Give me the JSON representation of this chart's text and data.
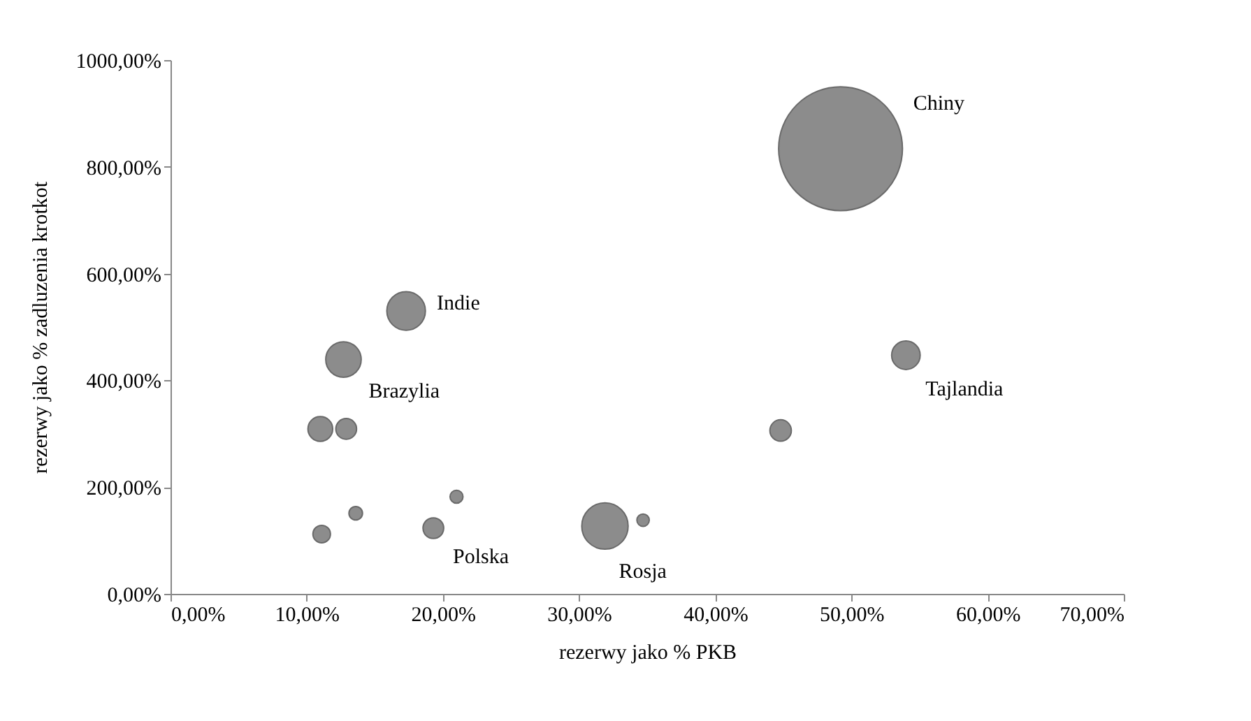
{
  "chart_data": {
    "type": "bubble",
    "xlabel": "rezerwy jako % PKB",
    "ylabel": "rezerwy jako % zadluzenia krotkot",
    "x": [
      49.2,
      17.3,
      12.7,
      11.0,
      12.9,
      11.1,
      13.6,
      21.0,
      19.3,
      31.9,
      34.7,
      44.8,
      54.0
    ],
    "series": [
      {
        "color": "#8c8c8c",
        "values": [
          834,
          530,
          439,
          309,
          309,
          112,
          151,
          182,
          123,
          127,
          138,
          306,
          447
        ],
        "sizes": [
          1,
          0.097,
          0.082,
          0.04,
          0.028,
          0.02,
          0.012,
          0.011,
          0.028,
          0.14,
          0.01,
          0.03,
          0.053
        ]
      }
    ],
    "xlim": [
      0,
      70
    ],
    "ylim": [
      0,
      1000
    ],
    "xticks": [
      {
        "value": 0,
        "label": "0,00%"
      },
      {
        "value": 10,
        "label": "10,00%"
      },
      {
        "value": 20,
        "label": "20,00%"
      },
      {
        "value": 30,
        "label": "30,00%"
      },
      {
        "value": 40,
        "label": "40,00%"
      },
      {
        "value": 50,
        "label": "50,00%"
      },
      {
        "value": 60,
        "label": "60,00%"
      },
      {
        "value": 70,
        "label": "70,00%"
      }
    ],
    "yticks": [
      {
        "value": 0,
        "label": "0,00%"
      },
      {
        "value": 200,
        "label": "200,00%"
      },
      {
        "value": 400,
        "label": "400,00%"
      },
      {
        "value": 600,
        "label": "600,00%"
      },
      {
        "value": 800,
        "label": "800,00%"
      },
      {
        "value": 1000,
        "label": "1000,00%"
      }
    ],
    "annotations": [
      "Chiny",
      {
        "text": "Indie",
        "x": 17.3,
        "y": 530
      },
      {
        "text": "Brazylia",
        "x": 12.7,
        "y": 439
      },
      {
        "text": "Polska",
        "x": 19.3,
        "y": 123
      },
      {
        "text": "Rosja",
        "x": 31.9,
        "y": 127
      },
      {
        "text": "Tajlandia",
        "x": 54.0,
        "y": 447
      }
    ],
    "grid": false,
    "legend": false
  }
}
